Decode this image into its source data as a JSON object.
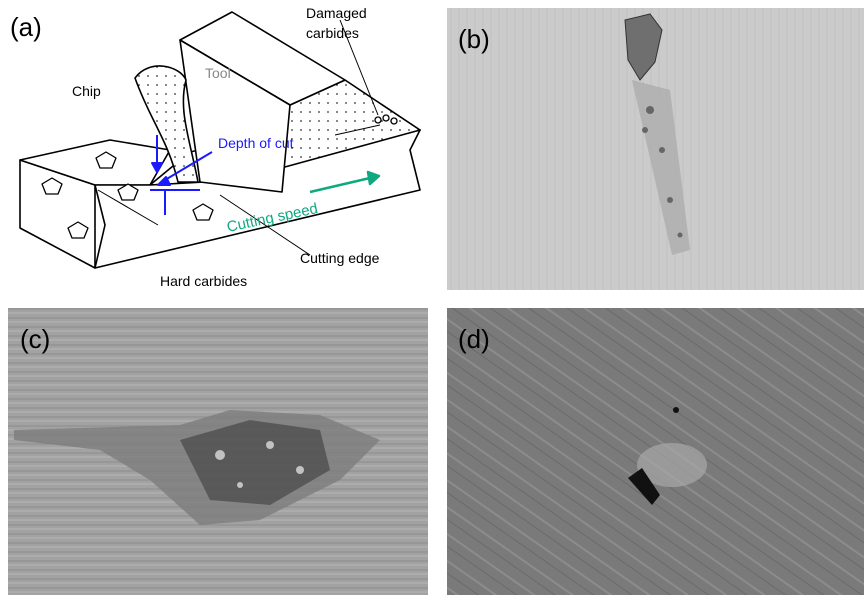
{
  "panels": [
    {
      "label": "(a)",
      "annotations": {
        "chip": "Chip",
        "tool": "Tool",
        "damaged_carbides": [
          "Damaged",
          "carbides"
        ],
        "depth_of_cut": "Depth of cut",
        "cutting_speed": "Cutting speed",
        "cutting_edge": "Cutting edge",
        "hard_carbides": "Hard carbides"
      }
    },
    {
      "label": "(b)"
    },
    {
      "label": "(c)"
    },
    {
      "label": "(d)"
    }
  ]
}
